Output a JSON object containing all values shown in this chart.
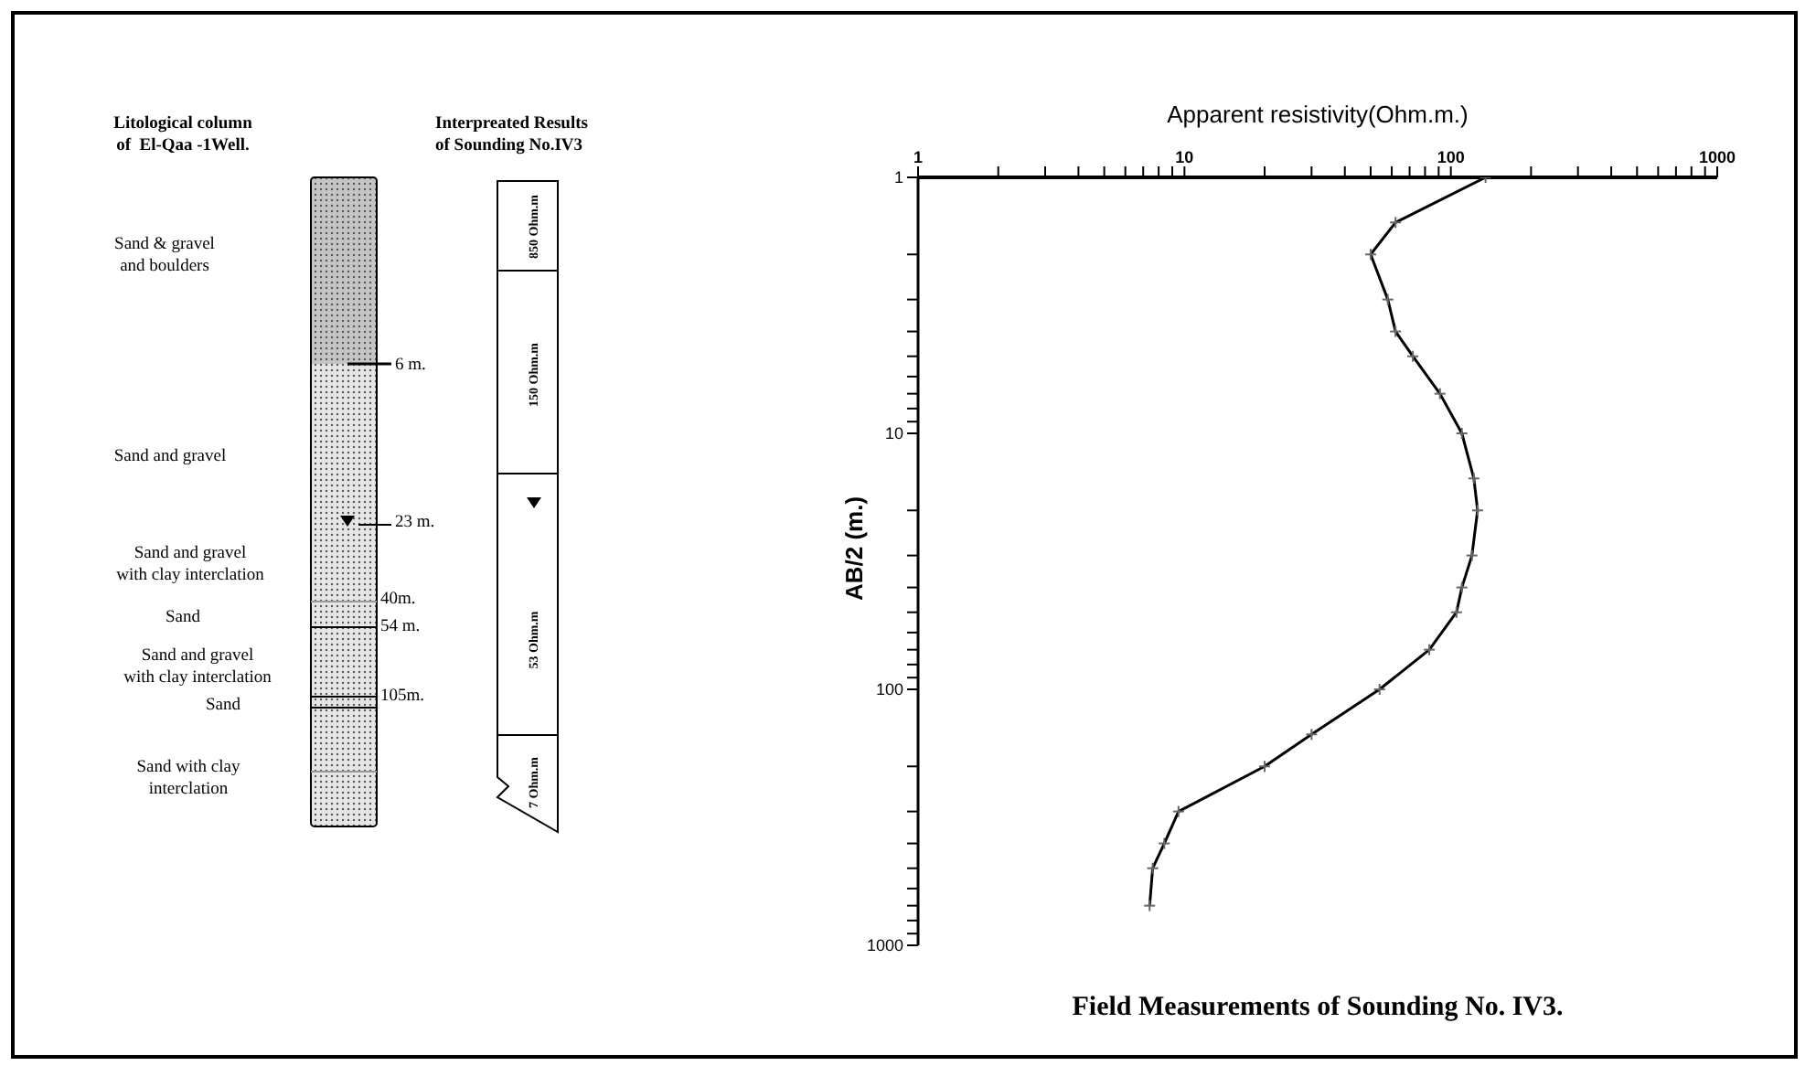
{
  "chart_data": [
    {
      "type": "other",
      "annotations": [
        "Litological column\nof  El-Qaa -1Well.",
        "Interpreated Results\nof Sounding No.IV3",
        "Sand & gravel\nand boulders",
        "6 m.",
        "Sand and gravel",
        "23 m.",
        "Sand and gravel\nwith clay interclation",
        "40m.",
        "Sand",
        "54 m.",
        "Sand and gravel\nwith clay interclation",
        "105m.",
        "Sand",
        "Sand with clay\ninterclation",
        "850 Ohm.m",
        "150 Ohm.m",
        "53 Ohm.m",
        "7 Ohm.m"
      ]
    },
    {
      "type": "line",
      "title": "Field Measurements of Sounding No. IV3.",
      "xlabel": "Apparent resistivity(Ohm.m.)",
      "ylabel": "AB/2 (m.)",
      "color": "#000000",
      "marker": "cross",
      "log": "xy",
      "x": [
        135,
        62,
        50,
        58,
        62,
        72,
        91,
        110,
        122,
        126,
        120,
        110,
        105,
        83,
        54,
        30,
        20,
        9.5,
        8.4,
        7.6,
        7.4
      ],
      "values": [
        1,
        1.5,
        2,
        3,
        4,
        5,
        7,
        10,
        15,
        20,
        30,
        40,
        50,
        70,
        100,
        150,
        200,
        300,
        400,
        500,
        700
      ],
      "xlim": [
        1,
        1000
      ],
      "xticks": [
        1,
        {
          "value": 2,
          "label": null
        },
        {
          "value": 3,
          "label": null
        },
        {
          "value": 4,
          "label": null
        },
        {
          "value": 5,
          "label": null
        },
        {
          "value": 6,
          "label": null
        },
        {
          "value": 7,
          "label": null
        },
        {
          "value": 8,
          "label": null
        },
        {
          "value": 9,
          "label": null
        },
        10,
        {
          "value": 20,
          "label": null
        },
        {
          "value": 30,
          "label": null
        },
        {
          "value": 40,
          "label": null
        },
        {
          "value": 50,
          "label": null
        },
        {
          "value": 60,
          "label": null
        },
        {
          "value": 70,
          "label": null
        },
        {
          "value": 80,
          "label": null
        },
        {
          "value": 90,
          "label": null
        },
        100,
        {
          "value": 200,
          "label": null
        },
        {
          "value": 300,
          "label": null
        },
        {
          "value": 400,
          "label": null
        },
        {
          "value": 500,
          "label": null
        },
        {
          "value": 600,
          "label": null
        },
        {
          "value": 700,
          "label": null
        },
        {
          "value": 800,
          "label": null
        },
        {
          "value": 900,
          "label": null
        },
        1000
      ],
      "ylim": [
        1000,
        1
      ],
      "yticks": [
        1,
        {
          "value": 2,
          "label": null
        },
        {
          "value": 3,
          "label": null
        },
        {
          "value": 4,
          "label": null
        },
        {
          "value": 5,
          "label": null
        },
        {
          "value": 6,
          "label": null
        },
        {
          "value": 7,
          "label": null
        },
        {
          "value": 8,
          "label": null
        },
        {
          "value": 9,
          "label": null
        },
        10,
        {
          "value": 20,
          "label": null
        },
        {
          "value": 30,
          "label": null
        },
        {
          "value": 40,
          "label": null
        },
        {
          "value": 50,
          "label": null
        },
        {
          "value": 60,
          "label": null
        },
        {
          "value": 70,
          "label": null
        },
        {
          "value": 80,
          "label": null
        },
        {
          "value": 90,
          "label": null
        },
        100,
        {
          "value": 200,
          "label": null
        },
        {
          "value": 300,
          "label": null
        },
        {
          "value": 400,
          "label": null
        },
        {
          "value": 500,
          "label": null
        },
        {
          "value": 600,
          "label": null
        },
        {
          "value": 700,
          "label": null
        },
        {
          "value": 800,
          "label": null
        },
        {
          "value": 900,
          "label": null
        },
        1000
      ]
    }
  ]
}
